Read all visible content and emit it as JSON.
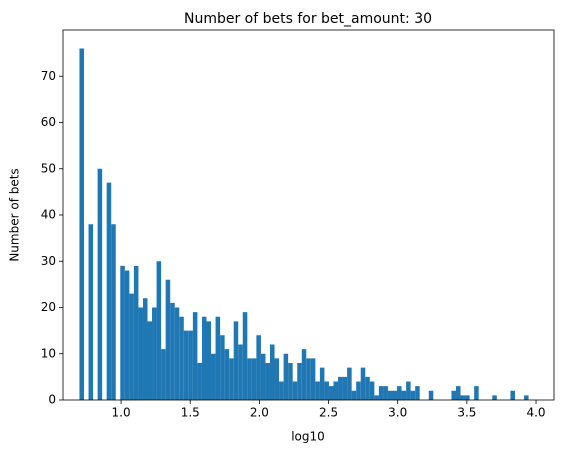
{
  "chart_data": {
    "type": "histogram",
    "title": "Number of bets for bet_amount: 30",
    "xlabel": "log10",
    "ylabel": "Number of bets",
    "color": "#1f77b4",
    "bins": [
      0.699,
      0.7318,
      0.7646,
      0.7974,
      0.8302,
      0.863,
      0.8958,
      0.9286,
      0.9614,
      0.9942,
      1.027,
      1.0598,
      1.0926,
      1.1254,
      1.1582,
      1.191,
      1.2238,
      1.2566,
      1.2894,
      1.3222,
      1.355,
      1.3878,
      1.4206,
      1.4534,
      1.4862,
      1.519,
      1.5518,
      1.5846,
      1.6174,
      1.6502,
      1.683,
      1.7158,
      1.7486,
      1.7814,
      1.8142,
      1.847,
      1.8798,
      1.9126,
      1.9454,
      1.9782,
      2.011,
      2.0438,
      2.0766,
      2.1094,
      2.1422,
      2.175,
      2.2078,
      2.2406,
      2.2734,
      2.3062,
      2.339,
      2.3718,
      2.4046,
      2.4374,
      2.4702,
      2.503,
      2.5358,
      2.5686,
      2.6014,
      2.6342,
      2.667,
      2.6998,
      2.7326,
      2.7654,
      2.7982,
      2.831,
      2.8638,
      2.8966,
      2.9294,
      2.9622,
      2.995,
      3.0278,
      3.0606,
      3.0934,
      3.1262,
      3.159,
      3.1918,
      3.2246,
      3.2574,
      3.2902,
      3.323,
      3.3558,
      3.3886,
      3.4214,
      3.4542,
      3.487,
      3.5198,
      3.5526,
      3.5854,
      3.6182,
      3.651,
      3.6838,
      3.7166,
      3.7494,
      3.7822,
      3.815,
      3.8478,
      3.8806,
      3.9134,
      3.9462,
      3.979
    ],
    "counts": [
      76,
      0,
      38,
      0,
      50,
      0,
      47,
      38,
      0,
      29,
      28,
      23,
      29,
      20,
      22,
      17,
      20,
      30,
      11,
      26,
      21,
      20,
      18,
      15,
      15,
      19,
      8,
      18,
      17,
      10,
      18,
      14,
      11,
      9,
      17,
      12,
      19,
      9,
      9,
      14,
      10,
      8,
      12,
      9,
      4,
      10,
      8,
      4,
      8,
      11,
      9,
      9,
      4,
      7,
      4,
      3,
      4,
      5,
      5,
      7,
      2,
      4,
      7,
      5,
      4,
      1,
      3,
      3,
      2,
      2,
      3,
      2,
      4,
      2,
      3,
      0,
      0,
      2,
      0,
      0,
      0,
      0,
      2,
      3,
      1,
      1,
      0,
      3,
      0,
      0,
      0,
      1,
      0,
      0,
      0,
      2,
      0,
      0,
      1,
      0
    ],
    "xlim": [
      0.58,
      4.13
    ],
    "ylim": [
      0,
      80
    ],
    "xticks": [
      {
        "value": 1,
        "label": "1.0"
      },
      {
        "value": 1.5,
        "label": "1.5"
      },
      {
        "value": 2,
        "label": "2.0"
      },
      {
        "value": 2.5,
        "label": "2.5"
      },
      {
        "value": 3,
        "label": "3.0"
      },
      {
        "value": 3.5,
        "label": "3.5"
      },
      {
        "value": 4,
        "label": "4.0"
      }
    ],
    "yticks": [
      0,
      10,
      20,
      30,
      40,
      50,
      60,
      70
    ]
  }
}
